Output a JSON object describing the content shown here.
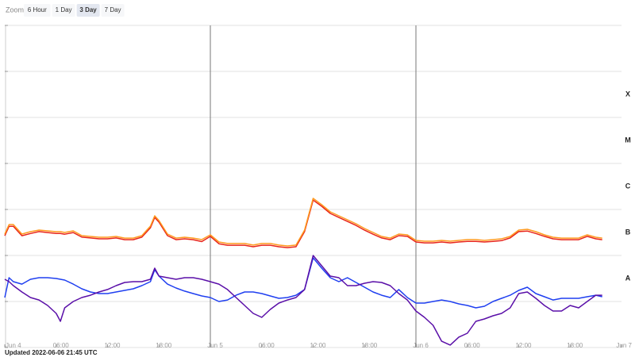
{
  "controls": {
    "label": "Zoom",
    "options": [
      "6 Hour",
      "1 Day",
      "3 Day",
      "7 Day"
    ],
    "selected": 2
  },
  "footer": "Updated 2022-06-06 21:45 UTC",
  "chart_data": {
    "type": "line",
    "log_scale": true,
    "grid": true,
    "show_ytick_labels": false,
    "day_lines": true,
    "xlim": [
      0,
      72
    ],
    "xticks": [
      {
        "value": 0,
        "label": "Jun 4"
      },
      {
        "value": 6,
        "label": "06:00"
      },
      {
        "value": 12,
        "label": "12:00"
      },
      {
        "value": 18,
        "label": "18:00"
      },
      {
        "value": 24,
        "label": "Jun 5"
      },
      {
        "value": 30,
        "label": "06:00"
      },
      {
        "value": 36,
        "label": "12:00"
      },
      {
        "value": 42,
        "label": "18:00"
      },
      {
        "value": 48,
        "label": "Jun 6"
      },
      {
        "value": 54,
        "label": "06:00"
      },
      {
        "value": 60,
        "label": "12:00"
      },
      {
        "value": 66,
        "label": "18:00"
      },
      {
        "value": 72,
        "label": "Jun 7"
      }
    ],
    "ylim": [
      1e-09,
      0.01
    ],
    "yticks": [
      1e-09,
      1e-08,
      1e-07,
      1e-06,
      1e-05,
      0.0001,
      0.001,
      0.01
    ],
    "flare_classes": [
      {
        "label": "X",
        "from": 0.0001,
        "to": 0.001
      },
      {
        "label": "M",
        "from": 1e-05,
        "to": 0.0001
      },
      {
        "label": "C",
        "from": 1e-06,
        "to": 1e-05
      },
      {
        "label": "B",
        "from": 1e-07,
        "to": 1e-06
      },
      {
        "label": "A",
        "from": 1e-08,
        "to": 1e-07
      }
    ],
    "x": [
      0,
      0.5,
      1,
      2,
      3,
      4,
      5,
      6,
      6.5,
      7,
      8,
      9,
      10,
      11,
      12,
      13,
      14,
      15,
      16,
      17,
      17.5,
      18,
      19,
      20,
      21,
      22,
      23,
      24,
      25,
      26,
      27,
      28,
      29,
      30,
      31,
      32,
      33,
      34,
      35,
      36,
      37,
      38,
      39,
      40,
      41,
      42,
      43,
      44,
      45,
      46,
      47,
      48,
      49,
      50,
      51,
      52,
      53,
      54,
      55,
      56,
      57,
      58,
      59,
      60,
      61,
      62,
      63,
      64,
      65,
      66,
      67,
      68,
      69,
      69.75
    ],
    "series": [
      {
        "color": "#e8251b",
        "values": [
          2.69e-07,
          4.3e-07,
          4.3e-07,
          2.69e-07,
          3e-07,
          3.3e-07,
          3.15e-07,
          3e-07,
          3e-07,
          2.9e-07,
          3.15e-07,
          2.5e-07,
          2.4e-07,
          2.3e-07,
          2.3e-07,
          2.4e-07,
          2.2e-07,
          2.2e-07,
          2.5e-07,
          4e-07,
          6.7e-07,
          5.3e-07,
          2.7e-07,
          2.2e-07,
          2.3e-07,
          2.2e-07,
          2e-07,
          2.6e-07,
          1.8e-07,
          1.67e-07,
          1.67e-07,
          1.67e-07,
          1.55e-07,
          1.67e-07,
          1.67e-07,
          1.55e-07,
          1.48e-07,
          1.55e-07,
          3.3e-07,
          1.6e-06,
          1.17e-06,
          8.2e-07,
          6.7e-07,
          5.5e-07,
          4.5e-07,
          3.55e-07,
          2.9e-07,
          2.4e-07,
          2.2e-07,
          2.7e-07,
          2.6e-07,
          1.96e-07,
          1.88e-07,
          1.88e-07,
          1.96e-07,
          1.88e-07,
          1.96e-07,
          2.03e-07,
          2.03e-07,
          1.96e-07,
          2.03e-07,
          2.1e-07,
          2.4e-07,
          3.3e-07,
          3.4e-07,
          3e-07,
          2.6e-07,
          2.3e-07,
          2.2e-07,
          2.2e-07,
          2.2e-07,
          2.6e-07,
          2.3e-07,
          2.2e-07
        ]
      },
      {
        "color": "#ff9a1f",
        "values": [
          2.92e-07,
          4.7e-07,
          4.7e-07,
          2.92e-07,
          3.29e-07,
          3.56e-07,
          3.42e-07,
          3.29e-07,
          3.29e-07,
          3.16e-07,
          3.42e-07,
          2.7e-07,
          2.59e-07,
          2.49e-07,
          2.49e-07,
          2.59e-07,
          2.39e-07,
          2.39e-07,
          2.7e-07,
          4.35e-07,
          7.28e-07,
          5.74e-07,
          2.92e-07,
          2.39e-07,
          2.49e-07,
          2.39e-07,
          2.21e-07,
          2.81e-07,
          1.96e-07,
          1.82e-07,
          1.82e-07,
          1.82e-07,
          1.68e-07,
          1.82e-07,
          1.82e-07,
          1.68e-07,
          1.61e-07,
          1.68e-07,
          3.56e-07,
          1.74e-06,
          1.27e-06,
          8.87e-07,
          7.28e-07,
          5.97e-07,
          4.89e-07,
          3.86e-07,
          3.16e-07,
          2.59e-07,
          2.39e-07,
          2.92e-07,
          2.81e-07,
          2.13e-07,
          2.04e-07,
          2.04e-07,
          2.13e-07,
          2.04e-07,
          2.13e-07,
          2.21e-07,
          2.21e-07,
          2.13e-07,
          2.21e-07,
          2.3e-07,
          2.59e-07,
          3.56e-07,
          3.71e-07,
          3.29e-07,
          2.81e-07,
          2.49e-07,
          2.39e-07,
          2.39e-07,
          2.39e-07,
          2.81e-07,
          2.49e-07,
          2.39e-07
        ]
      },
      {
        "color": "#1f3ff0",
        "values": [
          1.22e-08,
          3.29e-08,
          2.7e-08,
          2.39e-08,
          3.04e-08,
          3.29e-08,
          3.29e-08,
          3.16e-08,
          3.04e-08,
          2.92e-08,
          2.39e-08,
          1.89e-08,
          1.61e-08,
          1.49e-08,
          1.49e-08,
          1.61e-08,
          1.74e-08,
          1.89e-08,
          2.21e-08,
          2.7e-08,
          4.89e-08,
          3.56e-08,
          2.39e-08,
          1.96e-08,
          1.68e-08,
          1.49e-08,
          1.32e-08,
          1.22e-08,
          1e-08,
          1.08e-08,
          1.37e-08,
          1.61e-08,
          1.61e-08,
          1.49e-08,
          1.32e-08,
          1.17e-08,
          1.22e-08,
          1.37e-08,
          1.82e-08,
          8.88e-08,
          5.3e-08,
          3.29e-08,
          2.7e-08,
          3.29e-08,
          2.59e-08,
          2.04e-08,
          1.61e-08,
          1.37e-08,
          1.22e-08,
          1.82e-08,
          1.22e-08,
          9.24e-09,
          9.24e-09,
          1e-08,
          1.08e-08,
          1e-08,
          8.88e-09,
          8.2e-09,
          7.28e-09,
          7.88e-09,
          1e-08,
          1.17e-08,
          1.37e-08,
          1.74e-08,
          2.04e-08,
          1.49e-08,
          1.27e-08,
          1.08e-08,
          1.17e-08,
          1.17e-08,
          1.17e-08,
          1.27e-08,
          1.37e-08,
          1.27e-08
        ]
      },
      {
        "color": "#5a0fa8",
        "values": [
          3.04e-08,
          2.7e-08,
          2.21e-08,
          1.61e-08,
          1.22e-08,
          1.08e-08,
          8.2e-09,
          5.51e-09,
          3.71e-09,
          7.28e-09,
          1e-08,
          1.22e-08,
          1.37e-08,
          1.61e-08,
          1.82e-08,
          2.21e-08,
          2.59e-08,
          2.7e-08,
          2.7e-08,
          3.04e-08,
          5.3e-08,
          3.56e-08,
          3.29e-08,
          3.04e-08,
          3.29e-08,
          3.29e-08,
          3.04e-08,
          2.7e-08,
          2.39e-08,
          1.82e-08,
          1.22e-08,
          8.2e-09,
          5.51e-09,
          4.52e-09,
          6.73e-09,
          9.24e-09,
          1.08e-08,
          1.22e-08,
          1.82e-08,
          1e-07,
          5.97e-08,
          3.56e-08,
          3.29e-08,
          2.21e-08,
          2.21e-08,
          2.49e-08,
          2.7e-08,
          2.59e-08,
          2.21e-08,
          1.49e-08,
          1.08e-08,
          6.21e-09,
          4.52e-09,
          3.04e-09,
          1.37e-09,
          1.13e-09,
          1.68e-09,
          2.04e-09,
          3.71e-09,
          4.18e-09,
          4.89e-09,
          5.51e-09,
          7.28e-09,
          1.49e-08,
          1.61e-08,
          1.17e-08,
          8.2e-09,
          6.21e-09,
          6.21e-09,
          8.2e-09,
          7.28e-09,
          1e-08,
          1.37e-08,
          1.37e-08
        ]
      }
    ]
  }
}
